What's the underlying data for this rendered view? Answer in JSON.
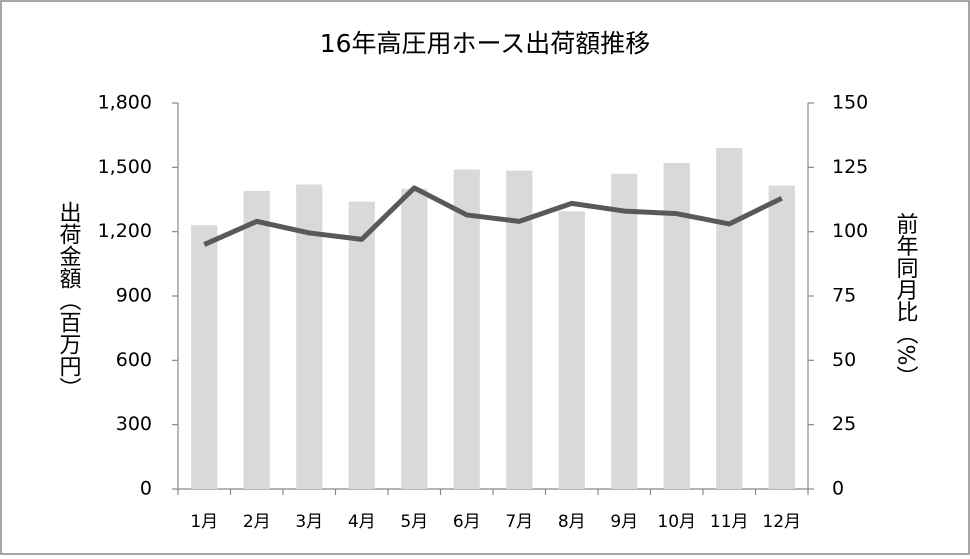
{
  "chart_data": {
    "type": "bar_line",
    "title": "16年高圧用ホース出荷額推移",
    "y_label": "出荷金額（百万円）",
    "y2_label": "前年同月比（%）",
    "categories": [
      "1月",
      "2月",
      "3月",
      "4月",
      "5月",
      "6月",
      "7月",
      "8月",
      "9月",
      "10月",
      "11月",
      "12月"
    ],
    "series": [
      {
        "type": "bar",
        "color": "#d9d9d9",
        "values": [
          1230,
          1390,
          1420,
          1340,
          1400,
          1490,
          1485,
          1295,
          1470,
          1520,
          1590,
          1415
        ]
      },
      {
        "type": "line",
        "axis": "y2",
        "color": "#595959",
        "values": [
          95,
          104,
          99.5,
          97,
          117,
          106.5,
          104,
          111,
          108,
          107,
          103,
          113
        ]
      }
    ],
    "ylim": [
      0,
      1800
    ],
    "yticks": [
      0,
      300,
      600,
      900,
      {
        "value": 1200,
        "label": "1,200"
      },
      {
        "value": 1500,
        "label": "1,500"
      },
      {
        "value": 1800,
        "label": "1,800"
      }
    ],
    "y2lim": [
      0,
      150
    ],
    "y2ticks": [
      0,
      25,
      50,
      75,
      100,
      125,
      150
    ]
  }
}
